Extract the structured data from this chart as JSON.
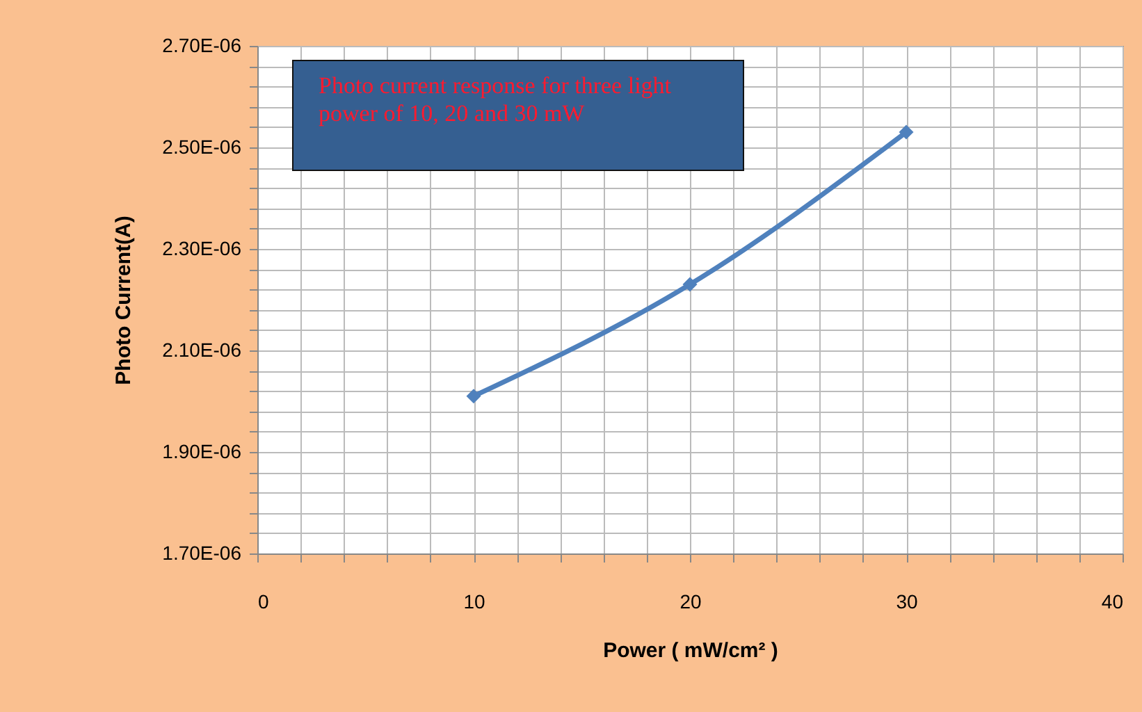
{
  "chart_data": {
    "type": "line",
    "xlabel": "Power ( mW/cm² )",
    "ylabel": "Photo Current(A)",
    "annotations": [
      "Photo current response for three light power of 10, 20 and 30 mW"
    ],
    "x": [
      10,
      20,
      30
    ],
    "series": [
      {
        "color": "#4f81bd",
        "values": [
          2.01e-06,
          2.23e-06,
          2.53e-06
        ]
      }
    ],
    "xlim": [
      0,
      40
    ],
    "xticks": [
      0,
      {
        "value": 2,
        "label": null
      },
      {
        "value": 4,
        "label": null
      },
      {
        "value": 6,
        "label": null
      },
      {
        "value": 8,
        "label": null
      },
      10,
      {
        "value": 12,
        "label": null
      },
      {
        "value": 14,
        "label": null
      },
      {
        "value": 16,
        "label": null
      },
      {
        "value": 18,
        "label": null
      },
      20,
      {
        "value": 22,
        "label": null
      },
      {
        "value": 24,
        "label": null
      },
      {
        "value": 26,
        "label": null
      },
      {
        "value": 28,
        "label": null
      },
      30,
      {
        "value": 32,
        "label": null
      },
      {
        "value": 34,
        "label": null
      },
      {
        "value": 36,
        "label": null
      },
      {
        "value": 38,
        "label": null
      },
      40
    ],
    "ylim": [
      1.7e-06,
      2.7e-06
    ],
    "yticks": [
      {
        "value": 1.7e-06,
        "label": "1.70E-06"
      },
      {
        "value": 1.74e-06,
        "label": null
      },
      {
        "value": 1.78e-06,
        "label": null
      },
      {
        "value": 1.82e-06,
        "label": null
      },
      {
        "value": 1.86e-06,
        "label": null
      },
      {
        "value": 1.9e-06,
        "label": "1.90E-06"
      },
      {
        "value": 1.94e-06,
        "label": null
      },
      {
        "value": 1.98e-06,
        "label": null
      },
      {
        "value": 2.02e-06,
        "label": null
      },
      {
        "value": 2.06e-06,
        "label": null
      },
      {
        "value": 2.1e-06,
        "label": "2.10E-06"
      },
      {
        "value": 2.14e-06,
        "label": null
      },
      {
        "value": 2.18e-06,
        "label": null
      },
      {
        "value": 2.22e-06,
        "label": null
      },
      {
        "value": 2.26e-06,
        "label": null
      },
      {
        "value": 2.3e-06,
        "label": "2.30E-06"
      },
      {
        "value": 2.34e-06,
        "label": null
      },
      {
        "value": 2.38e-06,
        "label": null
      },
      {
        "value": 2.42e-06,
        "label": null
      },
      {
        "value": 2.46e-06,
        "label": null
      },
      {
        "value": 2.5e-06,
        "label": "2.50E-06"
      },
      {
        "value": 2.54e-06,
        "label": null
      },
      {
        "value": 2.58e-06,
        "label": null
      },
      {
        "value": 2.62e-06,
        "label": null
      },
      {
        "value": 2.66e-06,
        "label": null
      },
      {
        "value": 2.7e-06,
        "label": "2.70E-06"
      }
    ],
    "grid": true,
    "marker": "diamond",
    "line_style": "solid"
  }
}
